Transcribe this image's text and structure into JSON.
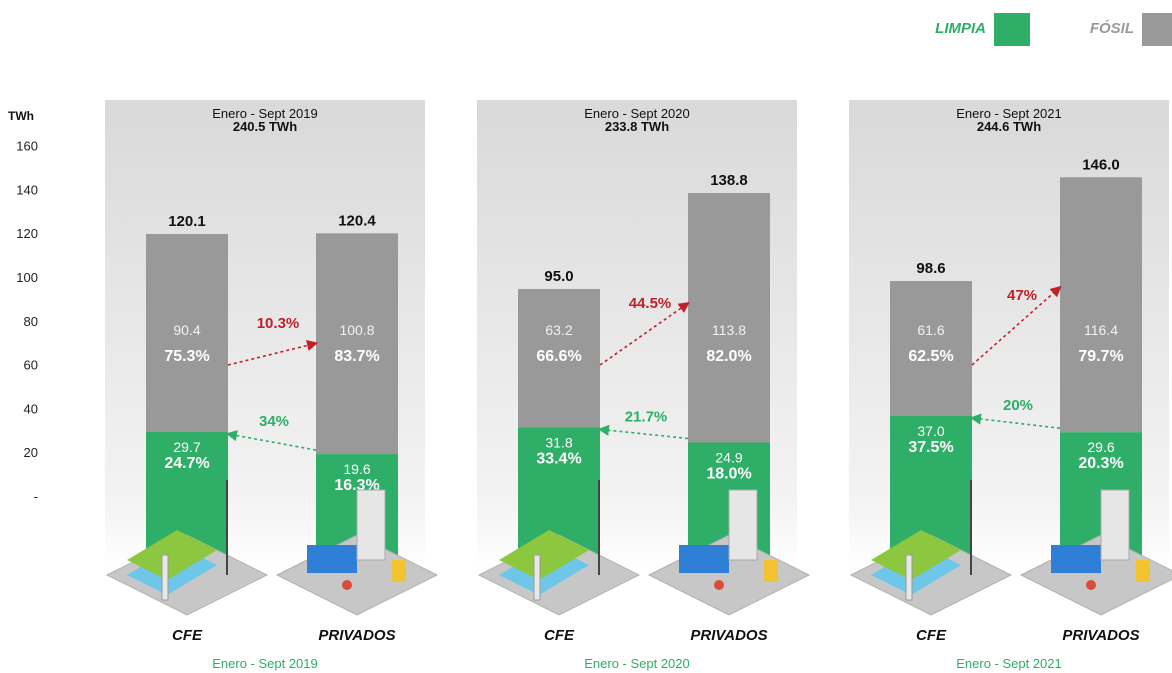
{
  "legend": {
    "clean_label": "LIMPIA",
    "fossil_label": "FÓSIL",
    "clean_color": "#2eae67",
    "fossil_color": "#999999"
  },
  "chart_data": {
    "type": "bar",
    "stacked": true,
    "ylabel": "TWh",
    "ylim": [
      0,
      160
    ],
    "yticks": [
      "160",
      "140",
      "120",
      "100",
      "80",
      "60",
      "40",
      "20",
      "-"
    ],
    "categories": [
      "CFE",
      "PRIVADOS"
    ],
    "periods": [
      {
        "title": "Enero - Sept 2019",
        "total_label": "240.5 TWh",
        "footer": "Enero - Sept 2019",
        "bars": [
          {
            "category": "CFE",
            "total": 120.1,
            "total_label": "120.1",
            "fossil": 90.4,
            "fossil_label": "90.4",
            "fossil_pct": "75.3%",
            "clean": 29.7,
            "clean_label": "29.7",
            "clean_pct": "24.7%"
          },
          {
            "category": "PRIVADOS",
            "total": 120.4,
            "total_label": "120.4",
            "fossil": 100.8,
            "fossil_label": "100.8",
            "fossil_pct": "83.7%",
            "clean": 19.6,
            "clean_label": "19.6",
            "clean_pct": "16.3%"
          }
        ],
        "fossil_growth": "10.3%",
        "clean_growth": "34%"
      },
      {
        "title": "Enero - Sept 2020",
        "total_label": "233.8 TWh",
        "footer": "Enero - Sept 2020",
        "bars": [
          {
            "category": "CFE",
            "total": 95.0,
            "total_label": "95.0",
            "fossil": 63.2,
            "fossil_label": "63.2",
            "fossil_pct": "66.6%",
            "clean": 31.8,
            "clean_label": "31.8",
            "clean_pct": "33.4%"
          },
          {
            "category": "PRIVADOS",
            "total": 138.8,
            "total_label": "138.8",
            "fossil": 113.8,
            "fossil_label": "113.8",
            "fossil_pct": "82.0%",
            "clean": 24.9,
            "clean_label": "24.9",
            "clean_pct": "18.0%"
          }
        ],
        "fossil_growth": "44.5%",
        "clean_growth": "21.7%"
      },
      {
        "title": "Enero - Sept 2021",
        "total_label": "244.6 TWh",
        "footer": "Enero - Sept 2021",
        "bars": [
          {
            "category": "CFE",
            "total": 98.6,
            "total_label": "98.6",
            "fossil": 61.6,
            "fossil_label": "61.6",
            "fossil_pct": "62.5%",
            "clean": 37.0,
            "clean_label": "37.0",
            "clean_pct": "37.5%"
          },
          {
            "category": "PRIVADOS",
            "total": 146.0,
            "total_label": "146.0",
            "fossil": 116.4,
            "fossil_label": "116.4",
            "fossil_pct": "79.7%",
            "clean": 29.6,
            "clean_label": "29.6",
            "clean_pct": "20.3%"
          }
        ],
        "fossil_growth": "47%",
        "clean_growth": "20%"
      }
    ]
  },
  "colors": {
    "panel_bg": "#e2e2e2",
    "fossil_arrow": "#c0202a",
    "clean_arrow": "#2eae67",
    "footer_text": "#2eae67"
  }
}
